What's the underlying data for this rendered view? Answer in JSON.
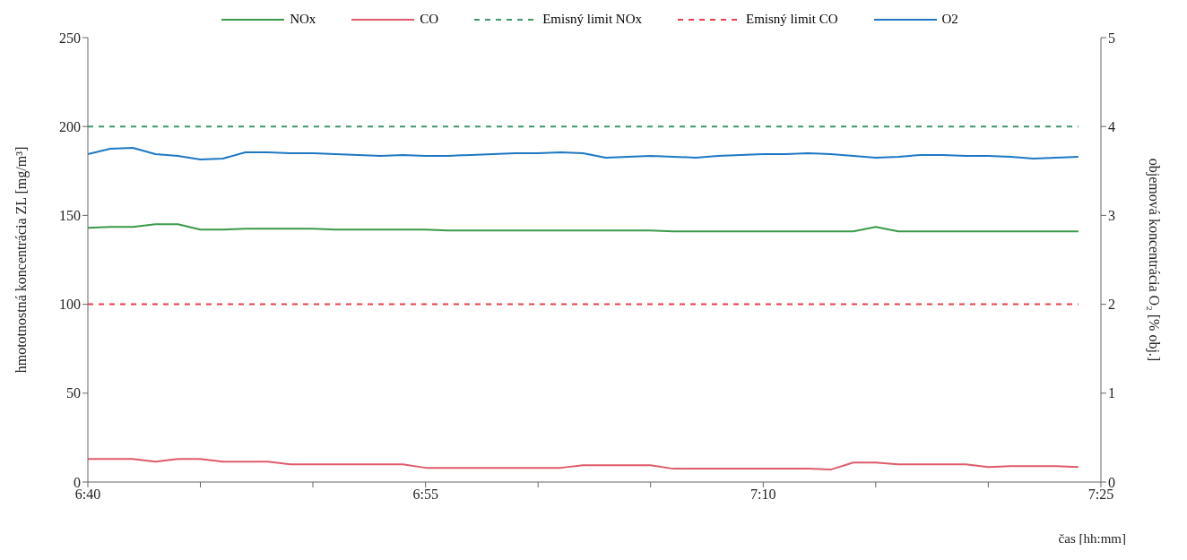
{
  "chart_data": {
    "type": "line",
    "xlabel": "čas [hh:mm]",
    "ylabel": "hmototnostná koncentrácia ZL  [mg/m³]",
    "y2label": "objemová koncentrácia O₂ [% obj.]",
    "x": [
      6.6667,
      6.6833,
      6.7,
      6.7167,
      6.7333,
      6.75,
      6.7667,
      6.7833,
      6.8,
      6.8167,
      6.8333,
      6.85,
      6.8667,
      6.8833,
      6.9,
      6.9167,
      6.9333,
      6.95,
      6.9667,
      6.9833,
      7,
      7.0167,
      7.0333,
      7.05,
      7.0667,
      7.0833,
      7.1,
      7.1167,
      7.1333,
      7.15,
      7.1667,
      7.1833,
      7.2,
      7.2167,
      7.2333,
      7.25,
      7.2667,
      7.2833,
      7.3,
      7.3167,
      7.3333,
      7.35,
      7.3667,
      7.3833,
      7.4
    ],
    "series": [
      {
        "name": "NOx",
        "color": "#3a9a4a",
        "values": [
          143,
          143.5,
          143.5,
          145,
          145,
          142,
          142,
          142.5,
          142.5,
          142.5,
          142.5,
          142,
          142,
          142,
          142,
          142,
          141.5,
          141.5,
          141.5,
          141.5,
          141.5,
          141.5,
          141.5,
          141.5,
          141.5,
          141.5,
          141,
          141,
          141,
          141,
          141,
          141,
          141,
          141,
          141,
          143.5,
          141,
          141,
          141,
          141,
          141,
          141,
          141,
          141,
          141
        ]
      },
      {
        "name": "CO",
        "color": "#e05a6a",
        "values": [
          13,
          13,
          13,
          11.5,
          13,
          13,
          11.5,
          11.5,
          11.5,
          10,
          10,
          10,
          10,
          10,
          10,
          8,
          8,
          8,
          8,
          8,
          8,
          8,
          9.5,
          9.5,
          9.5,
          9.5,
          7.5,
          7.5,
          7.5,
          7.5,
          7.5,
          7.5,
          7.5,
          7,
          11,
          11,
          10,
          10,
          10,
          10,
          8.5,
          9,
          9,
          9,
          8.5
        ]
      },
      {
        "name": "Emisný limit NOx",
        "color": "#3a9a6a",
        "line_style": "dashed",
        "values": [
          200,
          200,
          200,
          200,
          200,
          200,
          200,
          200,
          200,
          200,
          200,
          200,
          200,
          200,
          200,
          200,
          200,
          200,
          200,
          200,
          200,
          200,
          200,
          200,
          200,
          200,
          200,
          200,
          200,
          200,
          200,
          200,
          200,
          200,
          200,
          200,
          200,
          200,
          200,
          200,
          200,
          200,
          200,
          200,
          200
        ]
      },
      {
        "name": "Emisný limit CO",
        "color": "#e8404a",
        "line_style": "dashed",
        "values": [
          100,
          100,
          100,
          100,
          100,
          100,
          100,
          100,
          100,
          100,
          100,
          100,
          100,
          100,
          100,
          100,
          100,
          100,
          100,
          100,
          100,
          100,
          100,
          100,
          100,
          100,
          100,
          100,
          100,
          100,
          100,
          100,
          100,
          100,
          100,
          100,
          100,
          100,
          100,
          100,
          100,
          100,
          100,
          100,
          100
        ]
      },
      {
        "name": "O2",
        "color": "#1f77c4",
        "axis": "y2",
        "values": [
          3.69,
          3.75,
          3.76,
          3.69,
          3.67,
          3.63,
          3.64,
          3.71,
          3.71,
          3.7,
          3.7,
          3.69,
          3.68,
          3.67,
          3.68,
          3.67,
          3.67,
          3.68,
          3.69,
          3.7,
          3.7,
          3.71,
          3.7,
          3.65,
          3.66,
          3.67,
          3.66,
          3.65,
          3.67,
          3.68,
          3.69,
          3.69,
          3.7,
          3.69,
          3.67,
          3.65,
          3.66,
          3.68,
          3.68,
          3.67,
          3.67,
          3.66,
          3.64,
          3.65,
          3.66
        ]
      }
    ],
    "xlim": [
      6.6667,
      7.4167
    ],
    "xticks": [
      {
        "value": 6.6667,
        "label": "6:40"
      },
      {
        "value": 6.75,
        "label": null
      },
      {
        "value": 6.8333,
        "label": null
      },
      {
        "value": 6.9167,
        "label": "6:55"
      },
      {
        "value": 7,
        "label": null
      },
      {
        "value": 7.0833,
        "label": null
      },
      {
        "value": 7.1667,
        "label": "7:10"
      },
      {
        "value": 7.25,
        "label": null
      },
      {
        "value": 7.3333,
        "label": null
      },
      {
        "value": 7.4167,
        "label": "7:25"
      }
    ],
    "ylim": [
      0,
      250
    ],
    "yticks": [
      0,
      50,
      100,
      150,
      200,
      250
    ],
    "y2lim": [
      0,
      5
    ],
    "y2ticks": [
      0,
      1,
      2,
      3,
      4,
      5
    ],
    "grid": false,
    "legend": "top",
    "marker": "none",
    "line_style": "solid"
  }
}
